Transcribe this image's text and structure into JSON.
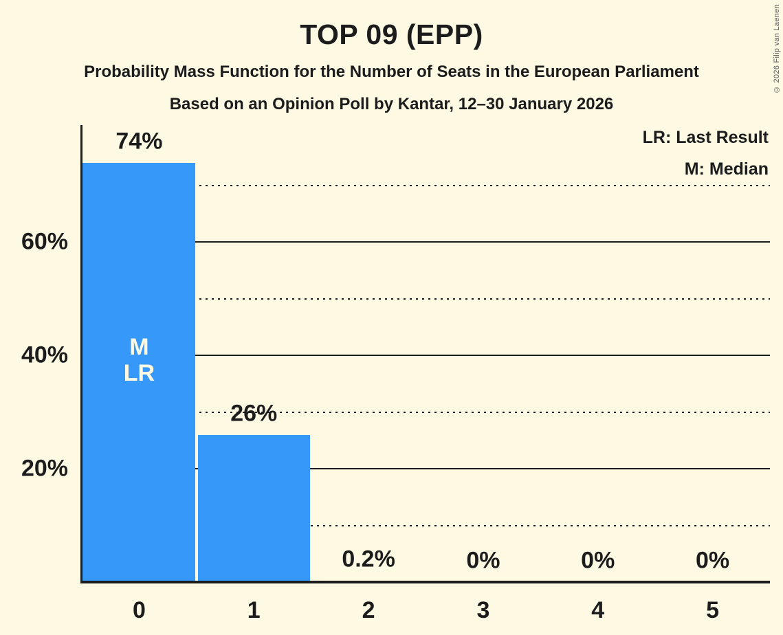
{
  "copyright": "© 2026 Filip van Laenen",
  "colors": {
    "background": "#FDF9E3",
    "bar": "#3699FA",
    "ink": "#1C1C1C",
    "annotation_text": "#FDF9E3"
  },
  "chart_data": {
    "type": "bar",
    "title": "TOP 09 (EPP)",
    "subtitle": "Probability Mass Function for the Number of Seats in the European Parliament",
    "poll_line": "Based on an Opinion Poll by Kantar, 12–30 January 2026",
    "xlabel": "",
    "ylabel": "",
    "categories": [
      "0",
      "1",
      "2",
      "3",
      "4",
      "5"
    ],
    "values": [
      74,
      26,
      0.2,
      0,
      0,
      0
    ],
    "bar_labels": [
      "74%",
      "26%",
      "0.2%",
      "0%",
      "0%",
      "0%"
    ],
    "ylim": [
      0,
      77
    ],
    "grid": "horizontal",
    "legend_position": "top-right",
    "legend": [
      {
        "text": "LR: Last Result"
      },
      {
        "text": "M: Median"
      }
    ],
    "y_axis": {
      "gridlines": [
        {
          "value": 70,
          "style": "dotted",
          "label": ""
        },
        {
          "value": 60,
          "style": "solid",
          "label": "60%"
        },
        {
          "value": 50,
          "style": "dotted",
          "label": ""
        },
        {
          "value": 40,
          "style": "solid",
          "label": "40%"
        },
        {
          "value": 30,
          "style": "dotted",
          "label": ""
        },
        {
          "value": 20,
          "style": "solid",
          "label": "20%"
        },
        {
          "value": 10,
          "style": "dotted",
          "label": ""
        }
      ]
    },
    "annotations": [
      {
        "bar_index": 0,
        "lines": [
          "M",
          "LR"
        ]
      }
    ]
  }
}
